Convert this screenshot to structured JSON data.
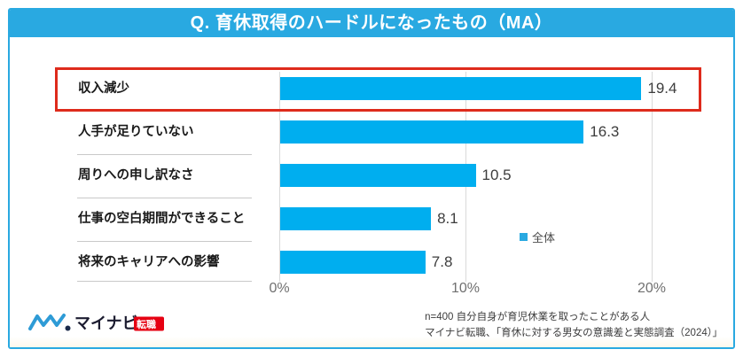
{
  "header": {
    "title": "Q. 育休取得のハードルになったもの（MA）"
  },
  "chart_data": {
    "type": "bar",
    "orientation": "horizontal",
    "title": "Q. 育休取得のハードルになったもの（MA）",
    "categories": [
      "収入減少",
      "人手が足りていない",
      "周りへの申し訳なさ",
      "仕事の空白期間ができること",
      "将来のキャリアへの影響"
    ],
    "values": [
      19.4,
      16.3,
      10.5,
      8.1,
      7.8
    ],
    "unit": "%",
    "xlim": [
      0,
      20
    ],
    "x_ticks": [
      "0%",
      "10%",
      "20%"
    ],
    "grid": true,
    "legend": {
      "label": "全体",
      "position": "right-center"
    },
    "bar_color": "#00AEEF",
    "highlight": {
      "category": "収入減少",
      "style": "red-box",
      "color": "#DE2B1C"
    }
  },
  "footer": {
    "logo": {
      "brand": "マイナビ",
      "badge": "転職"
    },
    "note_line1": "n=400 自分自身が育児休業を取ったことがある人",
    "note_line2": "マイナビ転職、「育休に対する男女の意識差と実態調査（2024）」"
  },
  "colors": {
    "accent_blue": "#29A9E1",
    "bar_blue": "#00AEEF",
    "highlight_red": "#DE2B1C",
    "badge_red": "#E60012"
  }
}
